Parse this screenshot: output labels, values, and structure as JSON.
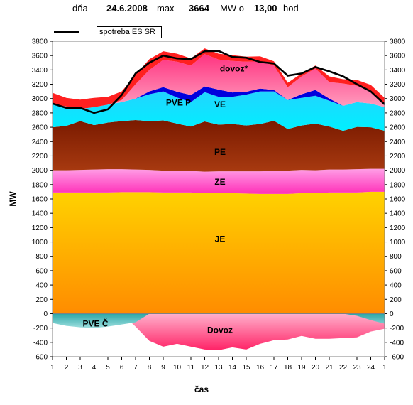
{
  "header": {
    "day_label": "dňa",
    "date": "24.6.2008",
    "max_label": "max",
    "max_value": "3664",
    "mw_o_label": "MW o",
    "time": "13,00",
    "hod_label": "hod"
  },
  "chart_data": {
    "type": "area",
    "ylabel": "MW",
    "xlabel": "čas",
    "ylim": [
      -600,
      3800
    ],
    "yticks": [
      -600,
      -400,
      -200,
      0,
      200,
      400,
      600,
      800,
      1000,
      1200,
      1400,
      1600,
      1800,
      2000,
      2200,
      2400,
      2600,
      2800,
      3000,
      3200,
      3400,
      3600,
      3800
    ],
    "x_ticks": [
      "1",
      "2",
      "3",
      "4",
      "5",
      "6",
      "7",
      "8",
      "9",
      "10",
      "11",
      "12",
      "13",
      "14",
      "15",
      "16",
      "17",
      "18",
      "19",
      "20",
      "21",
      "22",
      "23",
      "24",
      "1"
    ],
    "grid": false,
    "legend": {
      "position": "top-left",
      "line_label": "spotreba ES SR"
    },
    "area_labels": {
      "je": "JE",
      "ze": "ZE",
      "pe": "PE",
      "ve": "VE",
      "pve_p": "PVE P",
      "dovoz_star": "dovoz*",
      "pve_c": "PVE Č",
      "dovoz_neg": "Dovoz"
    },
    "colors": {
      "je": "#ffa500",
      "ze": "#ff66cc",
      "pe": "#8b2200",
      "ve": "#00e0ff",
      "pve_p": "#0000dd",
      "dovoz_star": "#ff6699",
      "red_band": "#ff2020",
      "pve_c": "#33b3b3",
      "dovoz_neg": "#ff6699",
      "consumption": "#000000"
    },
    "series": [
      {
        "name": "JE",
        "values": [
          1690,
          1690,
          1690,
          1690,
          1690,
          1695,
          1695,
          1695,
          1690,
          1690,
          1690,
          1680,
          1680,
          1680,
          1675,
          1670,
          1670,
          1670,
          1680,
          1680,
          1690,
          1690,
          1690,
          1700,
          1700
        ]
      },
      {
        "name": "ZE",
        "values": [
          310,
          310,
          315,
          320,
          325,
          320,
          315,
          310,
          305,
          300,
          300,
          300,
          305,
          305,
          310,
          315,
          320,
          325,
          325,
          320,
          320,
          320,
          325,
          320,
          320
        ]
      },
      {
        "name": "PE",
        "values": [
          600,
          620,
          680,
          620,
          650,
          670,
          690,
          680,
          700,
          660,
          620,
          700,
          650,
          660,
          640,
          660,
          700,
          580,
          620,
          650,
          600,
          540,
          590,
          580,
          530
        ]
      },
      {
        "name": "VE",
        "values": [
          320,
          270,
          170,
          250,
          250,
          265,
          300,
          375,
          405,
          365,
          340,
          410,
          390,
          380,
          430,
          455,
          410,
          405,
          385,
          390,
          360,
          350,
          345,
          330,
          330
        ]
      },
      {
        "name": "PVE P",
        "values": [
          0,
          0,
          0,
          0,
          0,
          0,
          0,
          40,
          60,
          80,
          100,
          80,
          100,
          60,
          40,
          40,
          20,
          0,
          50,
          80,
          30,
          0,
          0,
          0,
          0
        ]
      },
      {
        "name": "dovoz*",
        "values": [
          0,
          0,
          0,
          0,
          0,
          30,
          200,
          300,
          380,
          420,
          410,
          450,
          420,
          440,
          420,
          380,
          340,
          180,
          250,
          300,
          230,
          310,
          230,
          170,
          40
        ]
      },
      {
        "name": "red band",
        "values": [
          160,
          120,
          130,
          130,
          110,
          120,
          130,
          150,
          120,
          110,
          100,
          80,
          80,
          80,
          70,
          70,
          60,
          60,
          40,
          40,
          80,
          60,
          80,
          90,
          90
        ]
      },
      {
        "name": "PVE Č",
        "values": [
          -130,
          -170,
          -190,
          -200,
          -180,
          -150,
          -120,
          0,
          0,
          0,
          0,
          0,
          0,
          0,
          0,
          0,
          0,
          0,
          0,
          0,
          0,
          0,
          -30,
          -90,
          -140
        ]
      },
      {
        "name": "Dovoz",
        "values": [
          0,
          0,
          0,
          0,
          0,
          0,
          -180,
          -380,
          -460,
          -420,
          -460,
          -500,
          -510,
          -470,
          -500,
          -420,
          -370,
          -360,
          -310,
          -350,
          -350,
          -340,
          -330,
          -250,
          -210
        ]
      },
      {
        "name": "spotreba ES SR",
        "values": [
          2930,
          2870,
          2870,
          2800,
          2850,
          3050,
          3350,
          3500,
          3600,
          3560,
          3550,
          3660,
          3664,
          3580,
          3570,
          3510,
          3490,
          3320,
          3350,
          3440,
          3380,
          3310,
          3200,
          3100,
          2920
        ]
      }
    ]
  }
}
